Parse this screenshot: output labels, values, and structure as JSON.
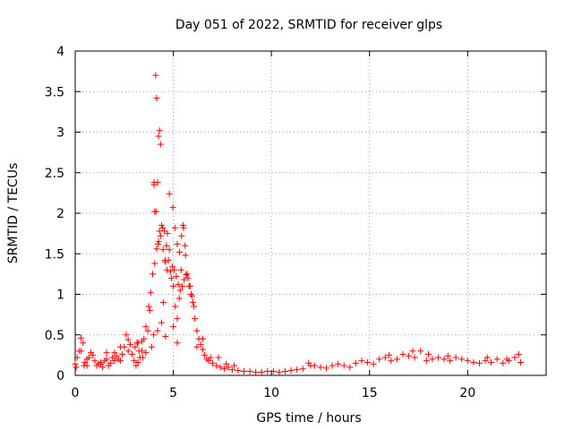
{
  "chart_data": {
    "type": "scatter",
    "title": "Day 051 of 2022, SRMTID for receiver glps",
    "xlabel": "GPS time / hours",
    "ylabel": "SRMTID / TECUs",
    "xlim": [
      0,
      24
    ],
    "ylim": [
      0,
      4
    ],
    "xticks": [
      0,
      5,
      10,
      15,
      20
    ],
    "xtick_labels": [
      "0",
      "5",
      "10",
      "15",
      "20"
    ],
    "yticks": [
      0,
      0.5,
      1,
      1.5,
      2,
      2.5,
      3,
      3.5,
      4
    ],
    "ytick_labels": [
      "0",
      "0.5",
      "1",
      "1.5",
      "2",
      "2.5",
      "3",
      "3.5",
      "4"
    ],
    "grid": true,
    "marker": "+",
    "color": "#ff0000",
    "series": [
      {
        "name": "SRMTID",
        "x": [
          0.0,
          0.1,
          0.2,
          0.3,
          0.4,
          0.5,
          0.6,
          0.7,
          0.8,
          0.9,
          1.0,
          1.1,
          1.2,
          1.3,
          1.4,
          1.5,
          1.6,
          1.7,
          1.8,
          1.9,
          2.0,
          2.1,
          2.2,
          2.3,
          2.4,
          2.5,
          2.6,
          2.7,
          2.8,
          2.9,
          3.0,
          3.1,
          3.2,
          3.3,
          3.4,
          3.5,
          3.6,
          3.7,
          3.8,
          3.9,
          4.0,
          4.05,
          4.1,
          4.15,
          4.2,
          4.25,
          4.3,
          4.35,
          4.4,
          4.5,
          4.6,
          4.7,
          4.8,
          4.9,
          5.0,
          5.1,
          5.2,
          5.3,
          5.4,
          5.5,
          5.6,
          5.7,
          5.8,
          5.9,
          6.0,
          6.1,
          6.2,
          6.3,
          6.4,
          6.5,
          6.6,
          6.7,
          6.8,
          6.9,
          7.0,
          7.2,
          7.4,
          7.6,
          7.8,
          8.0,
          8.3,
          8.6,
          8.9,
          9.2,
          9.5,
          9.8,
          10.1,
          10.4,
          10.7,
          11.0,
          11.3,
          11.6,
          11.9,
          12.2,
          12.5,
          12.8,
          13.1,
          13.4,
          13.7,
          14.0,
          14.3,
          14.6,
          14.9,
          15.2,
          15.5,
          15.8,
          16.1,
          16.4,
          16.7,
          17.0,
          17.3,
          17.6,
          17.9,
          18.2,
          18.5,
          18.8,
          19.1,
          19.4,
          19.7,
          20.0,
          20.3,
          20.6,
          20.9,
          21.2,
          21.5,
          21.8,
          22.1,
          22.4,
          22.7,
          3.75,
          3.85,
          3.95,
          4.05,
          4.15,
          4.25,
          4.35,
          4.45,
          4.55,
          4.65,
          4.75,
          4.85,
          4.95,
          5.05,
          5.15,
          5.25,
          5.35,
          5.45,
          5.55,
          5.65,
          5.75,
          5.85,
          5.95,
          6.05,
          4.02,
          4.02,
          4.12,
          4.22,
          4.3,
          4.48,
          4.58,
          4.68,
          4.8,
          4.98,
          5.08,
          5.2,
          5.32,
          5.42,
          5.52,
          5.62,
          0.3,
          0.6,
          1.6,
          2.3,
          3.2,
          3.4,
          0.05,
          0.45,
          1.3,
          2.0,
          2.7,
          3.05,
          3.15,
          3.25,
          3.45,
          3.6,
          4.2,
          4.4,
          4.6,
          5.0,
          5.2,
          6.2,
          6.5,
          7.3,
          7.7,
          8.1,
          12.0,
          16.0,
          17.2,
          18.0,
          19.0,
          21.0,
          22.0,
          22.6
        ],
        "y": [
          0.14,
          0.22,
          0.3,
          0.46,
          0.4,
          0.16,
          0.12,
          0.22,
          0.28,
          0.25,
          0.18,
          0.12,
          0.14,
          0.16,
          0.1,
          0.18,
          0.2,
          0.12,
          0.15,
          0.22,
          0.28,
          0.24,
          0.2,
          0.18,
          0.26,
          0.35,
          0.5,
          0.44,
          0.38,
          0.26,
          0.18,
          0.12,
          0.16,
          0.22,
          0.3,
          0.45,
          0.6,
          0.55,
          0.8,
          0.35,
          0.5,
          2.02,
          3.7,
          3.42,
          2.38,
          2.95,
          3.02,
          2.85,
          1.85,
          0.9,
          1.4,
          1.75,
          1.55,
          1.2,
          1.1,
          0.85,
          0.7,
          0.95,
          1.3,
          1.85,
          1.6,
          1.25,
          1.1,
          1.0,
          0.9,
          0.7,
          0.55,
          0.45,
          0.38,
          0.32,
          0.25,
          0.2,
          0.18,
          0.22,
          0.15,
          0.12,
          0.1,
          0.08,
          0.1,
          0.07,
          0.06,
          0.05,
          0.05,
          0.04,
          0.04,
          0.05,
          0.05,
          0.04,
          0.05,
          0.06,
          0.07,
          0.08,
          0.15,
          0.12,
          0.1,
          0.09,
          0.12,
          0.14,
          0.12,
          0.1,
          0.15,
          0.18,
          0.16,
          0.14,
          0.2,
          0.22,
          0.18,
          0.2,
          0.26,
          0.24,
          0.22,
          0.3,
          0.18,
          0.2,
          0.22,
          0.2,
          0.18,
          0.22,
          0.2,
          0.18,
          0.16,
          0.15,
          0.18,
          0.16,
          0.2,
          0.15,
          0.18,
          0.22,
          0.16,
          0.85,
          1.02,
          1.25,
          1.38,
          1.56,
          1.65,
          1.72,
          1.82,
          1.78,
          1.6,
          1.42,
          1.28,
          1.34,
          1.3,
          1.22,
          1.12,
          1.05,
          1.1,
          1.18,
          1.24,
          1.2,
          1.1,
          0.98,
          0.85,
          2.38,
          2.35,
          2.02,
          1.62,
          1.78,
          1.55,
          1.42,
          1.3,
          2.24,
          2.07,
          1.82,
          1.62,
          1.52,
          1.72,
          1.82,
          1.48,
          0.3,
          0.2,
          0.28,
          0.35,
          0.4,
          0.42,
          0.1,
          0.12,
          0.14,
          0.18,
          0.3,
          0.35,
          0.4,
          0.3,
          0.22,
          0.28,
          0.55,
          0.65,
          0.48,
          0.6,
          0.4,
          0.35,
          0.45,
          0.22,
          0.14,
          0.12,
          0.12,
          0.25,
          0.3,
          0.26,
          0.24,
          0.22,
          0.2,
          0.26
        ]
      }
    ]
  }
}
